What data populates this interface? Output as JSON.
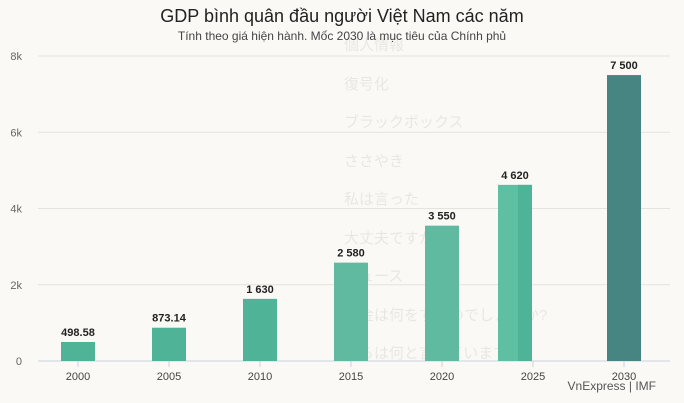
{
  "chart_data": {
    "type": "bar",
    "title": "GDP bình quân đầu người Việt Nam các năm",
    "subtitle": "Tính theo giá hiện hành. Mốc 2030 là mục tiêu của Chính phủ",
    "categories": [
      "2000",
      "2005",
      "2010",
      "2015",
      "2020",
      "2025",
      "2030"
    ],
    "values": [
      498.58,
      873.14,
      1630,
      2580,
      3550,
      4620,
      7500
    ],
    "data_labels": [
      "498.58",
      "873.14",
      "1 630",
      "2 580",
      "3 550",
      "4 620",
      "7 500"
    ],
    "colors": [
      "#4fb397",
      "#4fb397",
      "#4fb397",
      "#5fba9f",
      "#5fba9f",
      "#5fbfa3",
      "#468582"
    ],
    "yticks": [
      0,
      2000,
      4000,
      6000,
      8000
    ],
    "ytick_labels": [
      "0",
      "2k",
      "4k",
      "6k",
      "8k"
    ],
    "ylim": [
      0,
      8000
    ],
    "xlabel": "",
    "ylabel": "",
    "grid": true,
    "legend": "none"
  },
  "source": "VnExpress | IMF",
  "watermark": [
    "個人情報",
    "復号化",
    "ブラックボックス",
    "ささやき",
    "私は言った",
    "大丈夫ですか?",
    "ニュース",
    "お金は何をするのでしょうか?",
    "彼らは何と言っていますか?"
  ]
}
